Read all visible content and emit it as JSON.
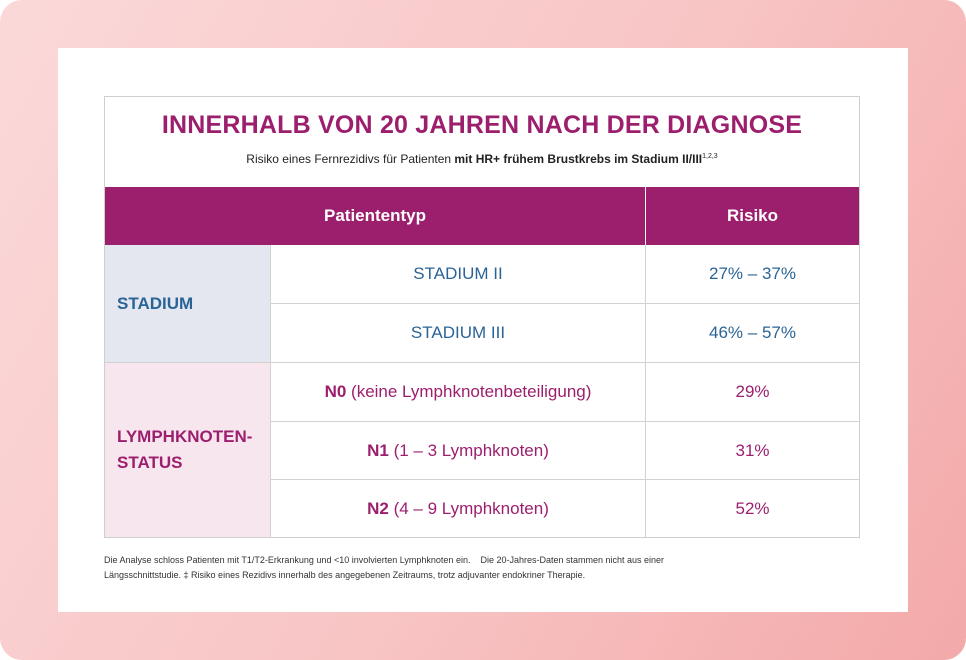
{
  "header": {
    "title": "INNERHALB VON 20 JAHREN NACH DER DIAGNOSE",
    "subtitle_plain": "Risiko eines Fernrezidivs für Patienten ",
    "subtitle_bold": "mit HR+ frühem Brustkrebs im Stadium II/III",
    "subtitle_sup": "1,2,3"
  },
  "table": {
    "col_patient": "Patiententyp",
    "col_risk": "Risiko",
    "group_stadium": "STADIUM",
    "group_lymph_line1": "LYMPHKNOTEN-",
    "group_lymph_line2": "STATUS",
    "rows": [
      {
        "code": "",
        "label": "STADIUM II",
        "risk": "27% – 37%"
      },
      {
        "code": "",
        "label": "STADIUM III",
        "risk": "46% – 57%"
      },
      {
        "code": "N0",
        "label": " (keine Lymphknotenbeteiligung)",
        "risk": "29%"
      },
      {
        "code": "N1",
        "label": " (1 – 3 Lymphknoten)",
        "risk": "31%"
      },
      {
        "code": "N2",
        "label": " (4 – 9 Lymphknoten)",
        "risk": "52%"
      }
    ]
  },
  "footnote": {
    "part1": "Die Analyse schloss Patienten mit T1/T2-Erkrankung und <10 involvierten Lymphknoten ein.",
    "part2": "Die 20-Jahres-Daten stammen nicht aus einer",
    "line2": "Längsschnittstudie. ‡ Risiko eines Rezidivs innerhalb des angegebenen Zeitraums, trotz adjuvanter endokriner Therapie."
  },
  "colors": {
    "magenta": "#9c1f6e",
    "blue": "#2a6496",
    "stadium_bg": "#e4e7f0",
    "lymph_bg": "#f8e6ee"
  }
}
